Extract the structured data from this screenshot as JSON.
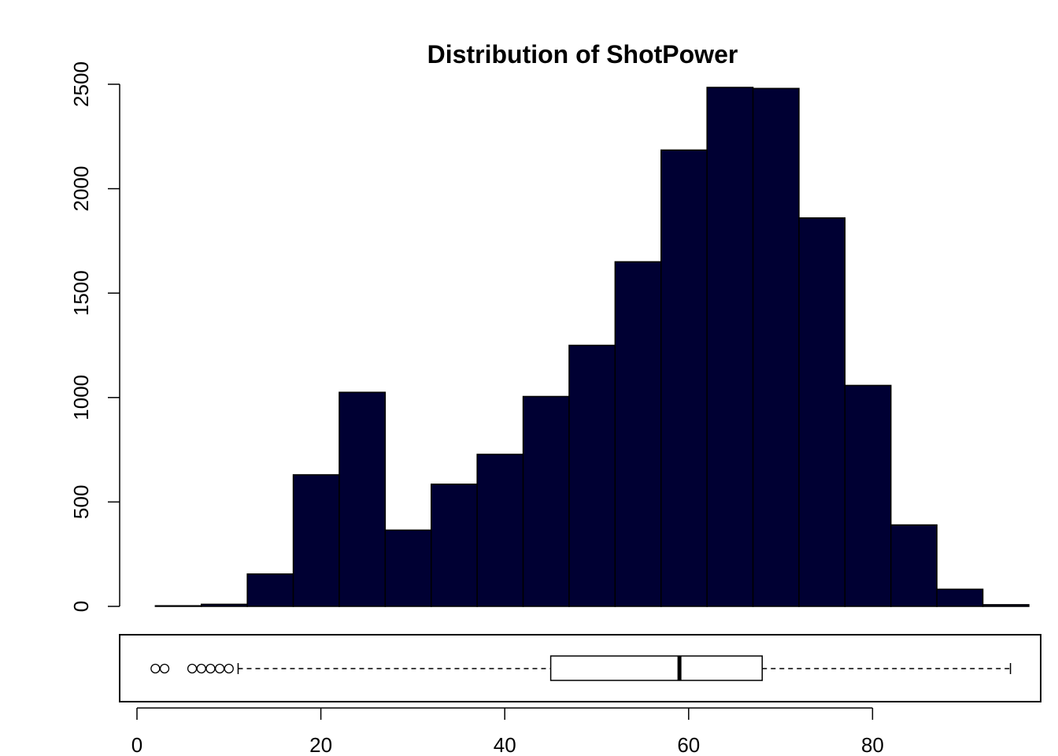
{
  "chart_data": {
    "type": "histogram_with_boxplot",
    "title": "Distribution of ShotPower",
    "xlabel": "",
    "ylabel": "",
    "bar_color": "#000033",
    "histogram": {
      "bin_edges": [
        2,
        7,
        12,
        17,
        22,
        27,
        32,
        37,
        42,
        47,
        52,
        57,
        62,
        67,
        72,
        77,
        82,
        87,
        92,
        97
      ],
      "counts": [
        3,
        10,
        155,
        630,
        1025,
        365,
        585,
        728,
        1005,
        1250,
        1650,
        2185,
        2485,
        2480,
        1860,
        1058,
        390,
        82,
        8
      ],
      "ylim": [
        0,
        2500
      ],
      "y_ticks": [
        "0",
        "500",
        "1000",
        "1500",
        "2000",
        "2500"
      ],
      "y_tick_values": [
        0,
        500,
        1000,
        1500,
        2000,
        2500
      ]
    },
    "boxplot": {
      "whisker_low": 11,
      "q1": 45,
      "median": 59,
      "q3": 68,
      "whisker_high": 95,
      "outliers": [
        2,
        3,
        6,
        7,
        8,
        9,
        10
      ]
    },
    "x_ticks": [
      "0",
      "20",
      "40",
      "60",
      "80"
    ],
    "x_tick_values": [
      0,
      20,
      40,
      60,
      80
    ],
    "grid": false,
    "legend": "none"
  }
}
